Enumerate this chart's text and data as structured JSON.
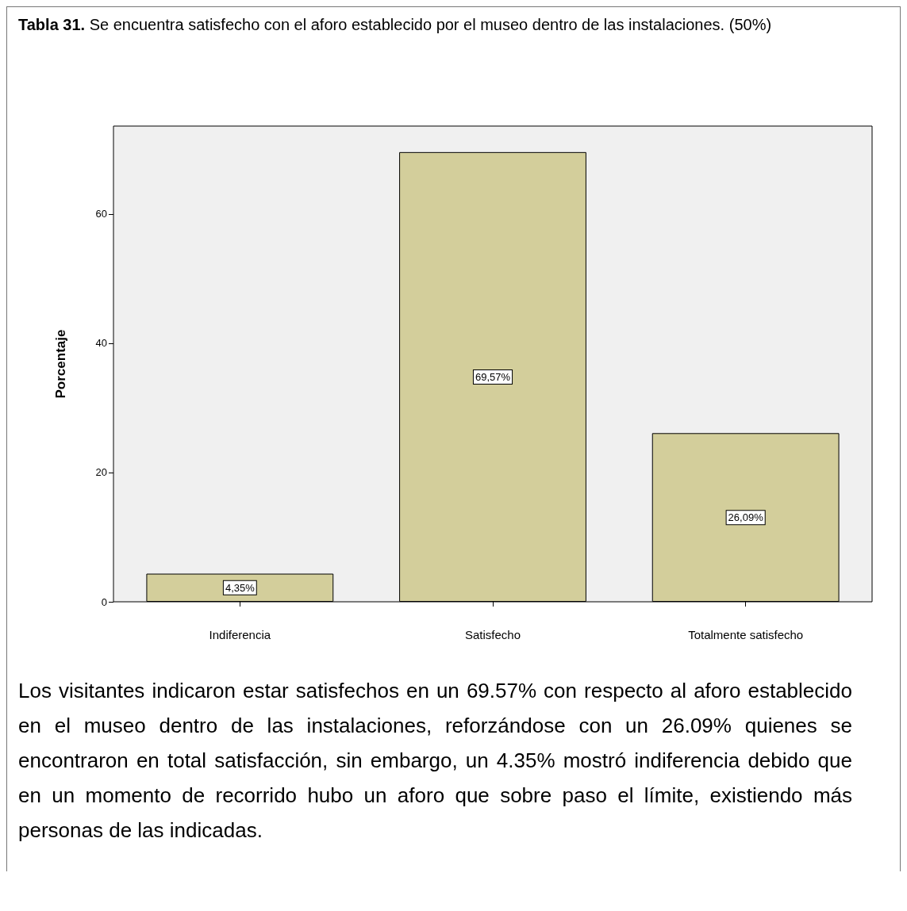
{
  "chart_data": {
    "type": "bar",
    "title": "Tabla 31. Se encuentra satisfecho con el aforo establecido por el museo dentro de las instalaciones. (50%)",
    "ylabel": "Porcentaje",
    "categories": [
      "Indiferencia",
      "Satisfecho",
      "Totalmente satisfecho"
    ],
    "values": [
      4.35,
      69.57,
      26.09
    ],
    "value_labels": [
      "4,35%",
      "69,57%",
      "26,09%"
    ],
    "color": "#d3ce9b",
    "ylim": [
      0,
      73.6
    ],
    "yticks": [
      0,
      20,
      40,
      60
    ],
    "grid": false,
    "annotations": [
      "Los visitantes indicaron estar satisfechos en un 69.57% con respecto al aforo establecido en el museo dentro de las instalaciones, reforzándose con un 26.09% quienes se encontraron en total satisfacción, sin embargo, un 4.35% mostró indiferencia debido que en un momento de recorrido hubo un aforo que sobre paso el límite, existiendo más personas de las indicadas."
    ]
  }
}
